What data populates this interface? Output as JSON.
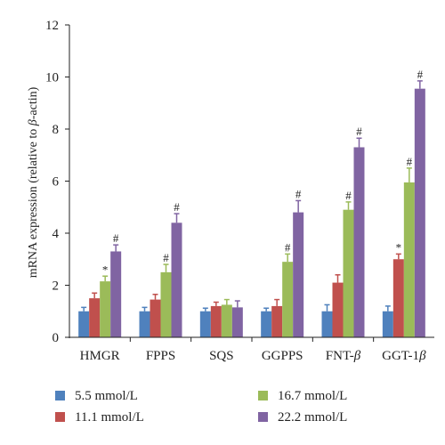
{
  "chart_data": {
    "type": "bar",
    "ylabel_prefix": "mRNA expression (relative to ",
    "ylabel_greek": "β",
    "ylabel_suffix": "-actin)",
    "ylim": [
      0,
      12
    ],
    "yticks": [
      "0",
      "2",
      "4",
      "6",
      "8",
      "10",
      "12"
    ],
    "ytick_values": [
      0,
      2,
      4,
      6,
      8,
      10,
      12
    ],
    "categories": [
      {
        "main": "HMGR",
        "greek": ""
      },
      {
        "main": "FPPS",
        "greek": ""
      },
      {
        "main": "SQS",
        "greek": ""
      },
      {
        "main": "GGPPS",
        "greek": ""
      },
      {
        "main": "FNT-",
        "greek": "β"
      },
      {
        "main": "GGT-1",
        "greek": "β"
      }
    ],
    "series": [
      {
        "name": "5.5 mmol/L",
        "color": "#4f81bd",
        "values": [
          1.0,
          1.0,
          1.0,
          1.0,
          1.0,
          1.0
        ],
        "errors": [
          0.15,
          0.15,
          0.12,
          0.12,
          0.25,
          0.2
        ],
        "annotations": [
          "",
          "",
          "",
          "",
          "",
          ""
        ]
      },
      {
        "name": "11.1 mmol/L",
        "color": "#c0504d",
        "values": [
          1.5,
          1.45,
          1.2,
          1.2,
          2.1,
          3.0
        ],
        "errors": [
          0.2,
          0.2,
          0.15,
          0.25,
          0.3,
          0.2
        ],
        "annotations": [
          "",
          "",
          "",
          "",
          "",
          "*"
        ]
      },
      {
        "name": "16.7 mmol/L",
        "color": "#9bbb59",
        "values": [
          2.15,
          2.5,
          1.25,
          2.9,
          4.9,
          5.95
        ],
        "errors": [
          0.2,
          0.3,
          0.2,
          0.3,
          0.3,
          0.55
        ],
        "annotations": [
          "*",
          "#",
          "",
          "#",
          "#",
          "#"
        ]
      },
      {
        "name": "22.2 mmol/L",
        "color": "#8064a2",
        "values": [
          3.3,
          4.4,
          1.15,
          4.8,
          7.3,
          9.55
        ],
        "errors": [
          0.25,
          0.35,
          0.25,
          0.45,
          0.35,
          0.3
        ],
        "annotations": [
          "#",
          "#",
          "",
          "#",
          "#",
          "#"
        ]
      }
    ],
    "grid": false,
    "legend_position": "bottom"
  }
}
